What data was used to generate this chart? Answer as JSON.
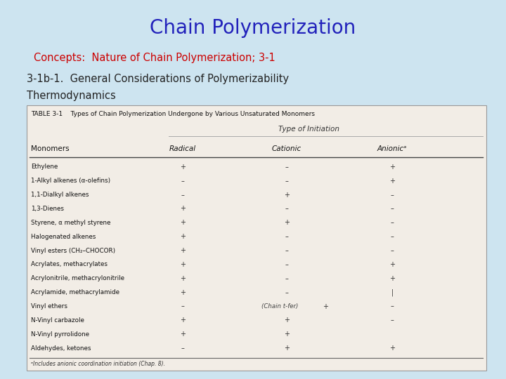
{
  "title": "Chain Polymerization",
  "subtitle": "Concepts:  Nature of Chain Polymerization; 3-1",
  "section": "3-1b-1.  General Considerations of Polymerizability",
  "subsection": "Thermodynamics",
  "bg_color": "#cde4f0",
  "title_color": "#2222bb",
  "subtitle_color": "#cc0000",
  "section_color": "#222222",
  "table_title": "TABLE 3-1    Types of Chain Polymerization Undergone by Various Unsaturated Monomers",
  "col_headers": [
    "Monomers",
    "Radical",
    "Cationic",
    "Anionicᵃ"
  ],
  "type_header": "Type of Initiation",
  "footnote": "ᵃIncludes anionic coordination initiation (Chap. 8).",
  "rows": [
    [
      "Ethylene",
      "+",
      "–",
      "+"
    ],
    [
      "1-Alkyl alkenes (α-olefins)",
      "–",
      "–",
      "+"
    ],
    [
      "1,1-Dialkyl alkenes",
      "–",
      "+",
      "–"
    ],
    [
      "1,3-Dienes",
      "+",
      "–",
      "–"
    ],
    [
      "Styrene, α methyl styrene",
      "+",
      "+",
      "–"
    ],
    [
      "Halogenated alkenes",
      "+",
      "–",
      "–"
    ],
    [
      "Vinyl esters (CH₂–CHOCOR)",
      "+",
      "–",
      "–"
    ],
    [
      "Acrylates, methacrylates",
      "+",
      "–",
      "+"
    ],
    [
      "Acrylonitrile, methacrylonitrile",
      "+",
      "–",
      "+"
    ],
    [
      "Acrylamide, methacrylamide",
      "+",
      "–",
      "|"
    ],
    [
      "Vinyl ethers",
      "–",
      "+",
      "–"
    ],
    [
      "N-Vinyl carbazole",
      "+",
      "+",
      "–"
    ],
    [
      "N-Vinyl pyrrolidone",
      "+",
      "+",
      ""
    ],
    [
      "Aldehydes, ketones",
      "–",
      "+",
      "+"
    ]
  ],
  "chain_transfer_note": "(Chain t-fer)",
  "chain_transfer_row": 10,
  "table_bg": "#f2ede6",
  "table_border": "#999999"
}
